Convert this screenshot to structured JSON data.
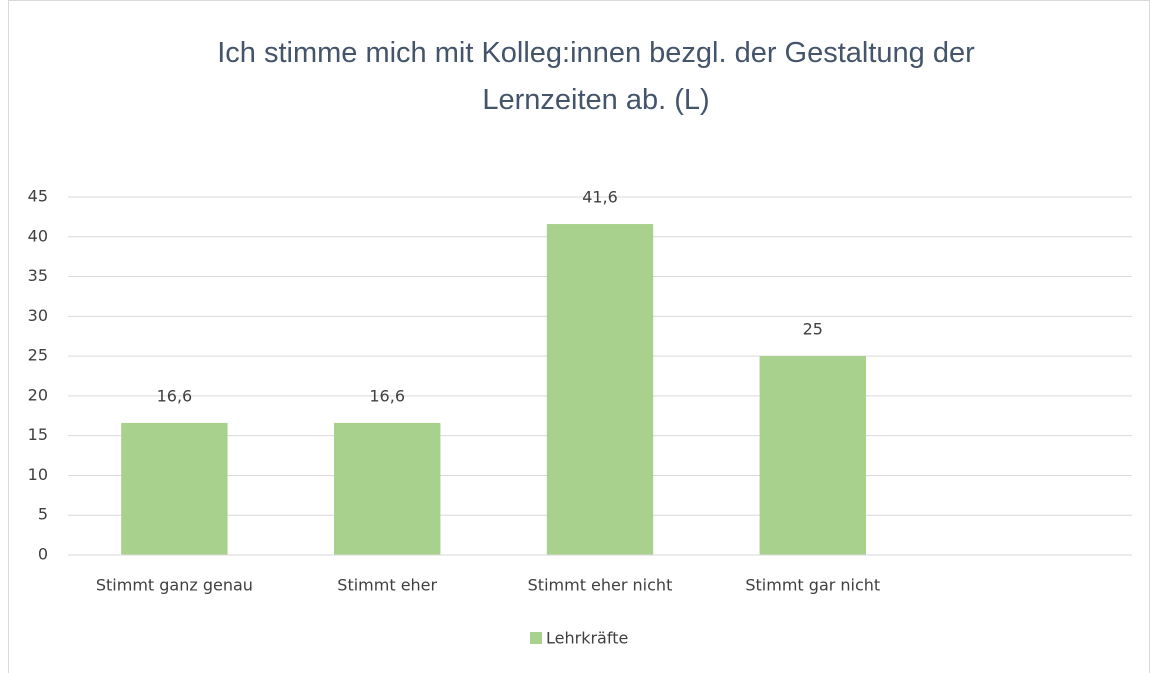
{
  "chart_data": {
    "type": "bar",
    "title": "Ich stimme mich mit Kolleg:innen bezgl. der Gestaltung der Lernzeiten ab. (L)",
    "categories": [
      "Stimmt ganz genau",
      "Stimmt eher",
      "Stimmt eher nicht",
      "Stimmt gar nicht",
      null
    ],
    "series": [
      {
        "name": "Lehrkräfte",
        "color": "#a9d18e",
        "values": [
          16.6,
          16.6,
          41.6,
          25,
          null
        ],
        "value_labels": [
          "16,6",
          "16,6",
          "41,6",
          "25",
          null
        ]
      }
    ],
    "ylim": [
      0,
      45
    ],
    "yticks": [
      0,
      5,
      10,
      15,
      20,
      25,
      30,
      35,
      40,
      45
    ],
    "grid": true,
    "legend": "bottom"
  }
}
